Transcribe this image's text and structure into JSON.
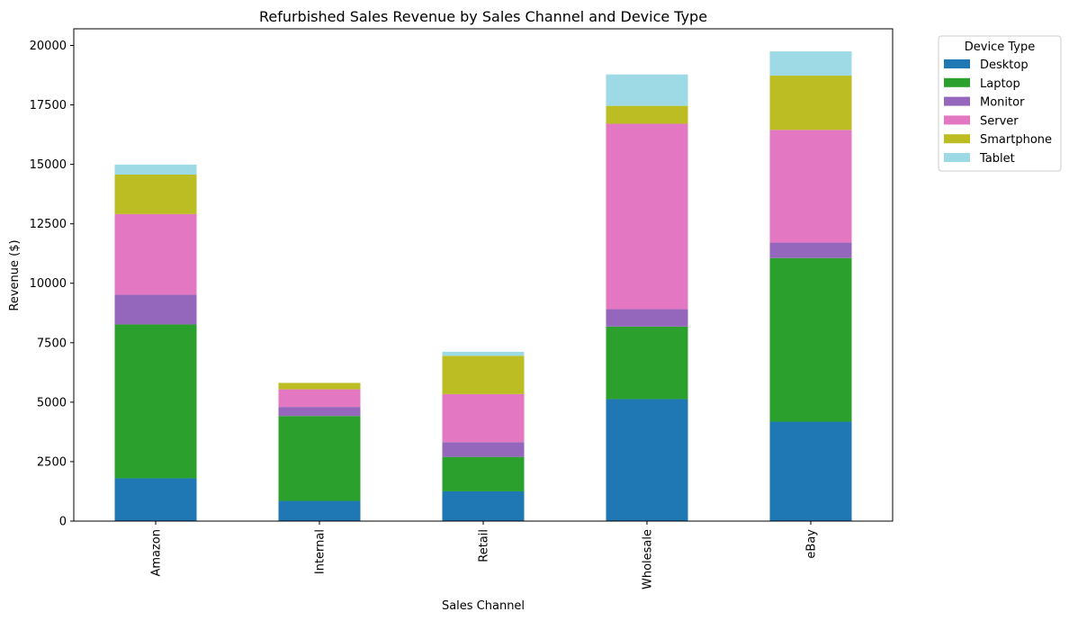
{
  "chart_data": {
    "type": "bar",
    "stacked": true,
    "title": "Refurbished Sales Revenue by Sales Channel and Device Type",
    "xlabel": "Sales Channel",
    "ylabel": "Revenue ($)",
    "ylim": [
      0,
      20700
    ],
    "yticks": [
      0,
      2500,
      5000,
      7500,
      10000,
      12500,
      15000,
      17500,
      20000
    ],
    "categories": [
      "Amazon",
      "Internal",
      "Retail",
      "Wholesale",
      "eBay"
    ],
    "legend": {
      "title": "Device Type",
      "placement": "outside-top-right"
    },
    "grid": false,
    "series": [
      {
        "name": "Desktop",
        "color": "#1f77b4",
        "values": [
          1800,
          850,
          1250,
          5130,
          4180
        ]
      },
      {
        "name": "Laptop",
        "color": "#2ca02c",
        "values": [
          6470,
          3570,
          1450,
          3050,
          6880
        ]
      },
      {
        "name": "Monitor",
        "color": "#9467bd",
        "values": [
          1250,
          380,
          620,
          730,
          650
        ]
      },
      {
        "name": "Server",
        "color": "#e377c2",
        "values": [
          3390,
          740,
          2020,
          7800,
          4740
        ]
      },
      {
        "name": "Smartphone",
        "color": "#bcbd22",
        "values": [
          1660,
          270,
          1610,
          750,
          2280
        ]
      },
      {
        "name": "Tablet",
        "color": "#9edae5",
        "values": [
          420,
          0,
          170,
          1320,
          1020
        ]
      }
    ]
  }
}
